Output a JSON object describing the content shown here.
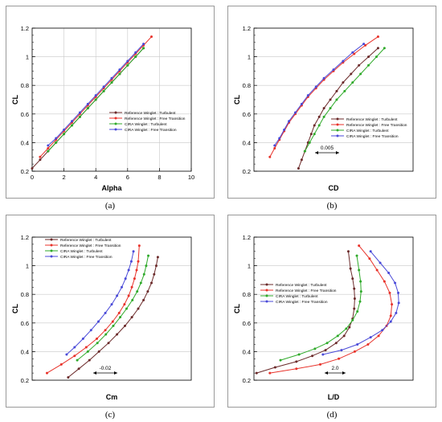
{
  "legend_labels": {
    "ref_turb": "Reference Winglet : Turbulent",
    "ref_free": "Reference Winglet : Free Transition",
    "cira_turb": "CIRA Winglet : Turbulent",
    "cira_free": "CIRA Winglet : Free Transition"
  },
  "series_colors": {
    "ref_turb": "#6b2a2a",
    "ref_free": "#e8322a",
    "cira_turb": "#2faa2a",
    "cira_free": "#4a4ad8"
  },
  "chart_data": [
    {
      "id": "a",
      "caption": "(a)",
      "type": "line",
      "xlabel": "Alpha",
      "ylabel": "CL",
      "xlim": [
        0,
        10
      ],
      "ylim": [
        0.2,
        1.2
      ],
      "xticks": [
        0,
        2,
        4,
        6,
        8,
        10
      ],
      "yticks": [
        0.2,
        0.4,
        0.6,
        0.8,
        1.0,
        1.2
      ],
      "ytick_labels": [
        "0.2",
        "0.4",
        "0.6",
        "0.8",
        "1",
        "1.2"
      ],
      "legend_position": "right-middle",
      "series": [
        {
          "key": "ref_turb",
          "x": [
            0.0,
            0.5,
            1.0,
            1.5,
            2.0,
            2.5,
            3.0,
            3.5,
            4.0,
            4.5,
            5.0,
            5.5,
            6.0,
            6.5,
            7.0
          ],
          "y": [
            0.22,
            0.28,
            0.34,
            0.4,
            0.46,
            0.52,
            0.58,
            0.64,
            0.7,
            0.76,
            0.82,
            0.88,
            0.94,
            1.0,
            1.06
          ]
        },
        {
          "key": "ref_free",
          "x": [
            0.5,
            1.0,
            1.5,
            2.0,
            2.5,
            3.0,
            3.5,
            4.0,
            4.5,
            5.0,
            5.5,
            6.0,
            6.5,
            7.0,
            7.5
          ],
          "y": [
            0.3,
            0.36,
            0.42,
            0.48,
            0.54,
            0.6,
            0.66,
            0.72,
            0.78,
            0.84,
            0.9,
            0.96,
            1.02,
            1.08,
            1.14
          ]
        },
        {
          "key": "cira_turb",
          "x": [
            1.0,
            1.5,
            2.0,
            2.5,
            3.0,
            3.5,
            4.0,
            4.5,
            5.0,
            5.5,
            6.0,
            6.5,
            7.0
          ],
          "y": [
            0.34,
            0.4,
            0.46,
            0.52,
            0.58,
            0.64,
            0.7,
            0.76,
            0.82,
            0.88,
            0.94,
            1.0,
            1.06
          ]
        },
        {
          "key": "cira_free",
          "x": [
            1.0,
            1.5,
            2.0,
            2.5,
            3.0,
            3.5,
            4.0,
            4.5,
            5.0,
            5.5,
            6.0,
            6.5,
            7.0
          ],
          "y": [
            0.38,
            0.43,
            0.49,
            0.55,
            0.61,
            0.67,
            0.73,
            0.79,
            0.85,
            0.91,
            0.97,
            1.03,
            1.09
          ]
        }
      ]
    },
    {
      "id": "b",
      "caption": "(b)",
      "type": "line",
      "xlabel": "CD",
      "ylabel": "CL",
      "ylim": [
        0.2,
        1.2
      ],
      "yticks": [
        0.2,
        0.4,
        0.6,
        0.8,
        1.0,
        1.2
      ],
      "ytick_labels": [
        "0.2",
        "0.4",
        "0.6",
        "0.8",
        "1",
        "1.2"
      ],
      "xticks": [],
      "xlim": [
        0.0,
        0.05
      ],
      "scale_annotation": "0.005",
      "legend_position": "right-middle",
      "series": [
        {
          "key": "ref_turb",
          "x": [
            0.014,
            0.015,
            0.016,
            0.017,
            0.018,
            0.019,
            0.0205,
            0.022,
            0.024,
            0.026,
            0.028,
            0.0305,
            0.033,
            0.036,
            0.039
          ],
          "y": [
            0.22,
            0.28,
            0.34,
            0.4,
            0.46,
            0.52,
            0.58,
            0.64,
            0.7,
            0.76,
            0.82,
            0.88,
            0.94,
            1.0,
            1.06
          ]
        },
        {
          "key": "ref_free",
          "x": [
            0.005,
            0.0065,
            0.008,
            0.0095,
            0.011,
            0.013,
            0.015,
            0.017,
            0.0195,
            0.022,
            0.025,
            0.028,
            0.0315,
            0.035,
            0.039
          ],
          "y": [
            0.3,
            0.36,
            0.42,
            0.48,
            0.54,
            0.6,
            0.66,
            0.72,
            0.78,
            0.84,
            0.9,
            0.96,
            1.02,
            1.08,
            1.14
          ]
        },
        {
          "key": "cira_turb",
          "x": [
            0.016,
            0.0175,
            0.019,
            0.0205,
            0.022,
            0.024,
            0.026,
            0.0285,
            0.031,
            0.0335,
            0.036,
            0.0385,
            0.041
          ],
          "y": [
            0.34,
            0.4,
            0.46,
            0.52,
            0.58,
            0.64,
            0.7,
            0.76,
            0.82,
            0.88,
            0.94,
            1.0,
            1.06
          ]
        },
        {
          "key": "cira_free",
          "x": [
            0.0065,
            0.008,
            0.0095,
            0.011,
            0.013,
            0.015,
            0.017,
            0.0195,
            0.022,
            0.025,
            0.028,
            0.031,
            0.0345
          ],
          "y": [
            0.38,
            0.43,
            0.49,
            0.55,
            0.61,
            0.67,
            0.73,
            0.79,
            0.85,
            0.91,
            0.97,
            1.03,
            1.09
          ]
        }
      ]
    },
    {
      "id": "c",
      "caption": "(c)",
      "type": "line",
      "xlabel": "Cm",
      "ylabel": "CL",
      "ylim": [
        0.2,
        1.2
      ],
      "yticks": [
        0.2,
        0.4,
        0.6,
        0.8,
        1.0,
        1.2
      ],
      "ytick_labels": [
        "0.2",
        "0.4",
        "0.6",
        "0.8",
        "1",
        "1.2"
      ],
      "xticks": [],
      "xlim": [
        -0.3,
        0.0
      ],
      "scale_annotation": "-0.02",
      "legend_position": "top-left",
      "series": [
        {
          "key": "ref_turb",
          "x": [
            -0.232,
            -0.212,
            -0.192,
            -0.174,
            -0.156,
            -0.14,
            -0.125,
            -0.112,
            -0.1,
            -0.09,
            -0.082,
            -0.075,
            -0.07,
            -0.066,
            -0.063
          ],
          "y": [
            0.22,
            0.28,
            0.34,
            0.4,
            0.46,
            0.52,
            0.58,
            0.64,
            0.7,
            0.76,
            0.82,
            0.88,
            0.94,
            1.0,
            1.06
          ]
        },
        {
          "key": "ref_free",
          "x": [
            -0.272,
            -0.245,
            -0.22,
            -0.198,
            -0.178,
            -0.162,
            -0.148,
            -0.136,
            -0.126,
            -0.118,
            -0.112,
            -0.107,
            -0.103,
            -0.1,
            -0.098
          ],
          "y": [
            0.25,
            0.31,
            0.37,
            0.43,
            0.49,
            0.55,
            0.61,
            0.67,
            0.73,
            0.79,
            0.85,
            0.91,
            0.97,
            1.03,
            1.14
          ]
        },
        {
          "key": "cira_turb",
          "x": [
            -0.215,
            -0.195,
            -0.177,
            -0.161,
            -0.147,
            -0.134,
            -0.122,
            -0.111,
            -0.102,
            -0.095,
            -0.089,
            -0.085,
            -0.081
          ],
          "y": [
            0.34,
            0.4,
            0.46,
            0.52,
            0.58,
            0.64,
            0.7,
            0.76,
            0.82,
            0.88,
            0.94,
            1.0,
            1.07
          ]
        },
        {
          "key": "cira_free",
          "x": [
            -0.235,
            -0.22,
            -0.204,
            -0.189,
            -0.175,
            -0.162,
            -0.15,
            -0.14,
            -0.131,
            -0.124,
            -0.118,
            -0.113,
            -0.109
          ],
          "y": [
            0.38,
            0.43,
            0.49,
            0.55,
            0.61,
            0.67,
            0.73,
            0.79,
            0.85,
            0.91,
            0.97,
            1.03,
            1.1
          ]
        }
      ]
    },
    {
      "id": "d",
      "caption": "(d)",
      "type": "line",
      "xlabel": "L/D",
      "ylabel": "CL",
      "ylim": [
        0.2,
        1.2
      ],
      "yticks": [
        0.2,
        0.4,
        0.6,
        0.8,
        1.0,
        1.2
      ],
      "ytick_labels": [
        "0.2",
        "0.4",
        "0.6",
        "0.8",
        "1",
        "1.2"
      ],
      "xticks": [],
      "xlim": [
        0,
        30
      ],
      "scale_annotation": "2.0",
      "legend_position": "top-left",
      "series": [
        {
          "key": "ref_turb",
          "x": [
            0.5,
            4.0,
            8.0,
            11.0,
            13.5,
            15.5,
            17.0,
            18.0,
            18.6,
            18.9,
            19.0,
            18.9,
            18.6,
            18.2,
            17.8
          ],
          "y": [
            0.25,
            0.29,
            0.33,
            0.37,
            0.41,
            0.46,
            0.51,
            0.57,
            0.63,
            0.7,
            0.77,
            0.84,
            0.91,
            0.98,
            1.1
          ]
        },
        {
          "key": "ref_free",
          "x": [
            3.0,
            8.0,
            12.5,
            16.0,
            19.0,
            21.5,
            23.5,
            25.0,
            25.8,
            26.0,
            25.6,
            24.6,
            23.2,
            21.8,
            19.8
          ],
          "y": [
            0.25,
            0.28,
            0.31,
            0.35,
            0.4,
            0.45,
            0.51,
            0.58,
            0.65,
            0.73,
            0.81,
            0.89,
            0.97,
            1.05,
            1.14
          ]
        },
        {
          "key": "cira_turb",
          "x": [
            5.0,
            8.5,
            11.5,
            13.8,
            15.8,
            17.4,
            18.6,
            19.5,
            20.0,
            20.2,
            20.1,
            19.8,
            19.4
          ],
          "y": [
            0.34,
            0.38,
            0.42,
            0.46,
            0.51,
            0.56,
            0.62,
            0.68,
            0.75,
            0.82,
            0.89,
            0.97,
            1.07
          ]
        },
        {
          "key": "cira_free",
          "x": [
            13.0,
            16.5,
            19.5,
            22.0,
            24.2,
            25.8,
            26.8,
            27.3,
            27.2,
            26.6,
            25.4,
            23.8,
            22.0
          ],
          "y": [
            0.38,
            0.41,
            0.45,
            0.5,
            0.55,
            0.61,
            0.67,
            0.74,
            0.81,
            0.88,
            0.95,
            1.02,
            1.1
          ]
        }
      ]
    }
  ]
}
